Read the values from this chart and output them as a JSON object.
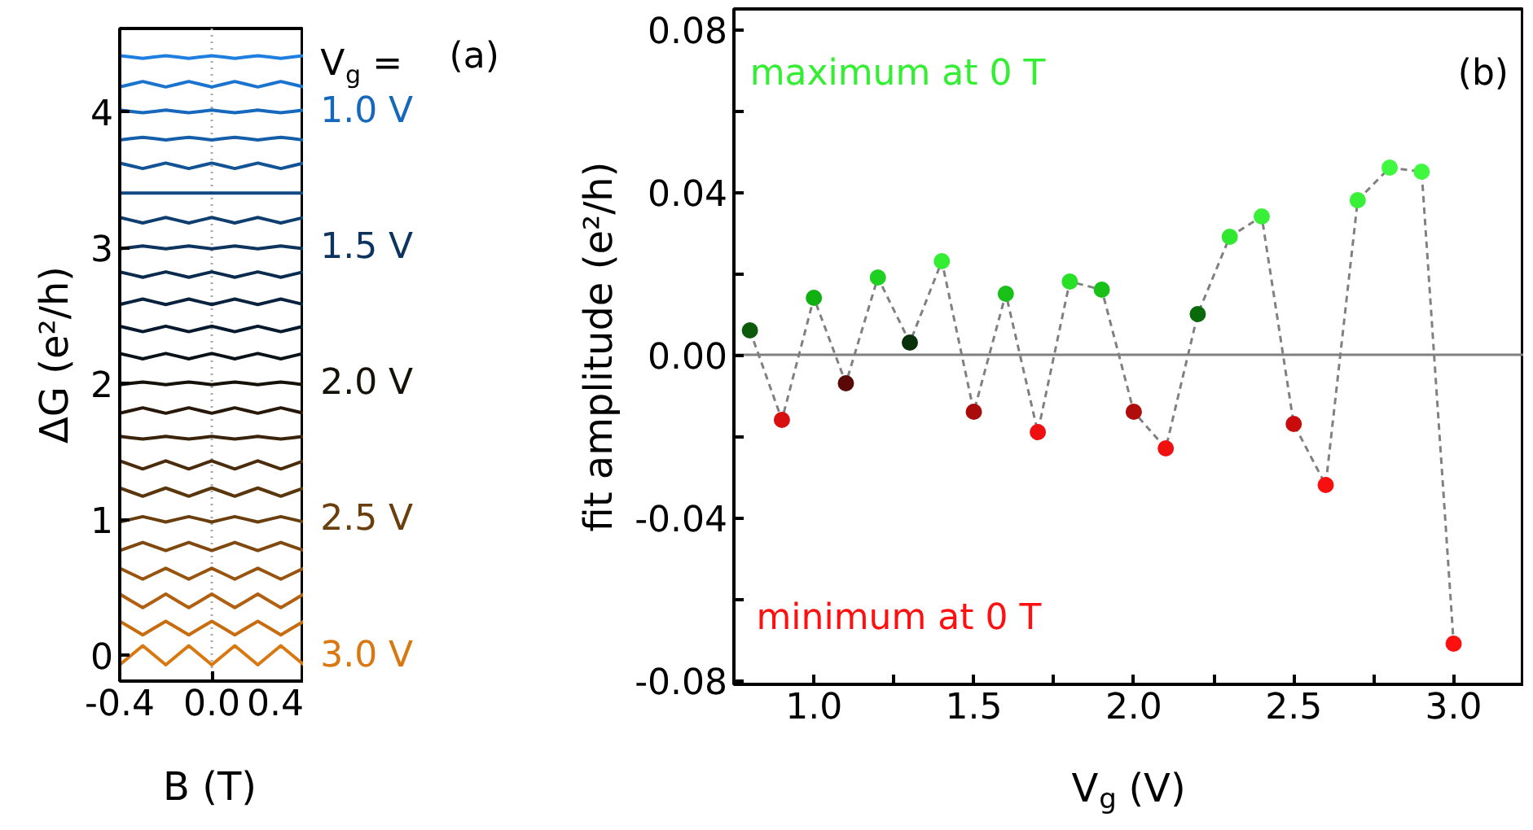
{
  "chart_data": [
    {
      "type": "line",
      "xlabel": "B (T)",
      "ylabel": "ΔG (e²/h)",
      "legend_title": "V$_{g}$ =",
      "annotations": [
        "(a)"
      ],
      "xlim": [
        -0.4,
        0.4
      ],
      "ylim": [
        -0.19,
        4.61
      ],
      "xticks": [
        -0.4,
        {
          "value": 0,
          "label": "0.0"
        },
        0.4
      ],
      "yticks": [
        0,
        1,
        2,
        3,
        4
      ],
      "ref_lines": [
        {
          "axis": "x",
          "value": 0,
          "color": "#aaaaaa",
          "line_style": "dotted"
        }
      ],
      "x": [
        -0.4,
        -0.35,
        -0.3,
        -0.25,
        -0.2,
        -0.15,
        -0.1,
        -0.05,
        0,
        0.05,
        0.1,
        0.15,
        0.2,
        0.25,
        0.3,
        0.35,
        0.4
      ],
      "series": [
        {
          "color": "#1e7fe0",
          "values": [
            4.41,
            4.4,
            4.39,
            4.4,
            4.41,
            4.4,
            4.39,
            4.4,
            4.41,
            4.4,
            4.39,
            4.4,
            4.41,
            4.4,
            4.39,
            4.4,
            4.41
          ]
        },
        {
          "color": "#1a74cf",
          "values": [
            4.18,
            4.2,
            4.22,
            4.2,
            4.18,
            4.2,
            4.22,
            4.2,
            4.18,
            4.2,
            4.22,
            4.2,
            4.18,
            4.2,
            4.22,
            4.2,
            4.18
          ]
        },
        {
          "name": "1.0 V",
          "color": "#1668bd",
          "values": [
            4.01,
            4.0,
            3.99,
            4.0,
            4.01,
            4.0,
            3.99,
            4.0,
            4.01,
            4.0,
            3.99,
            4.0,
            4.01,
            4.0,
            3.99,
            4.0,
            4.01
          ]
        },
        {
          "color": "#145ea9",
          "values": [
            3.79,
            3.8,
            3.81,
            3.8,
            3.79,
            3.8,
            3.81,
            3.8,
            3.79,
            3.8,
            3.81,
            3.8,
            3.79,
            3.8,
            3.81,
            3.8,
            3.79
          ]
        },
        {
          "color": "#125395",
          "values": [
            3.62,
            3.6,
            3.58,
            3.6,
            3.62,
            3.6,
            3.58,
            3.6,
            3.62,
            3.6,
            3.58,
            3.6,
            3.62,
            3.6,
            3.58,
            3.6,
            3.62
          ]
        },
        {
          "color": "#104882",
          "values": [
            3.4,
            3.4,
            3.4,
            3.4,
            3.4,
            3.4,
            3.4,
            3.4,
            3.4,
            3.4,
            3.4,
            3.4,
            3.4,
            3.4,
            3.4,
            3.4,
            3.4
          ]
        },
        {
          "color": "#0e3e70",
          "values": [
            3.22,
            3.2,
            3.18,
            3.2,
            3.22,
            3.2,
            3.18,
            3.2,
            3.22,
            3.2,
            3.18,
            3.2,
            3.22,
            3.2,
            3.18,
            3.2,
            3.22
          ]
        },
        {
          "name": "1.5 V",
          "color": "#0c345e",
          "values": [
            2.99,
            3.0,
            3.01,
            3.0,
            2.99,
            3.0,
            3.01,
            3.0,
            2.99,
            3.0,
            3.01,
            3.0,
            2.99,
            3.0,
            3.01,
            3.0,
            2.99
          ]
        },
        {
          "color": "#0a2b4d",
          "values": [
            2.82,
            2.8,
            2.78,
            2.8,
            2.82,
            2.8,
            2.78,
            2.8,
            2.82,
            2.8,
            2.78,
            2.8,
            2.82,
            2.8,
            2.78,
            2.8,
            2.82
          ]
        },
        {
          "color": "#08223d",
          "values": [
            2.58,
            2.6,
            2.62,
            2.6,
            2.58,
            2.6,
            2.62,
            2.6,
            2.58,
            2.6,
            2.62,
            2.6,
            2.58,
            2.6,
            2.62,
            2.6,
            2.58
          ]
        },
        {
          "color": "#07192d",
          "values": [
            2.42,
            2.4,
            2.38,
            2.4,
            2.42,
            2.4,
            2.38,
            2.4,
            2.42,
            2.4,
            2.38,
            2.4,
            2.42,
            2.4,
            2.38,
            2.4,
            2.42
          ]
        },
        {
          "color": "#0a1218",
          "values": [
            2.22,
            2.2,
            2.18,
            2.2,
            2.22,
            2.2,
            2.18,
            2.2,
            2.22,
            2.2,
            2.18,
            2.2,
            2.22,
            2.2,
            2.18,
            2.2,
            2.22
          ]
        },
        {
          "name": "2.0 V",
          "color": "#151008",
          "values": [
            1.99,
            2.0,
            2.01,
            2.0,
            1.99,
            2.0,
            2.01,
            2.0,
            1.99,
            2.0,
            2.01,
            2.0,
            1.99,
            2.0,
            2.01,
            2.0,
            1.99
          ]
        },
        {
          "color": "#28180a",
          "values": [
            1.78,
            1.8,
            1.82,
            1.8,
            1.78,
            1.8,
            1.82,
            1.8,
            1.78,
            1.8,
            1.82,
            1.8,
            1.78,
            1.8,
            1.82,
            1.8,
            1.78
          ]
        },
        {
          "color": "#3a220b",
          "values": [
            1.61,
            1.6,
            1.59,
            1.6,
            1.61,
            1.6,
            1.59,
            1.6,
            1.61,
            1.6,
            1.59,
            1.6,
            1.61,
            1.6,
            1.59,
            1.6,
            1.61
          ]
        },
        {
          "color": "#4a2c0c",
          "values": [
            1.43,
            1.4,
            1.37,
            1.4,
            1.43,
            1.4,
            1.37,
            1.4,
            1.43,
            1.4,
            1.37,
            1.4,
            1.43,
            1.4,
            1.37,
            1.4,
            1.43
          ]
        },
        {
          "color": "#5a360d",
          "values": [
            1.23,
            1.2,
            1.17,
            1.2,
            1.23,
            1.2,
            1.17,
            1.2,
            1.23,
            1.2,
            1.17,
            1.2,
            1.23,
            1.2,
            1.17,
            1.2,
            1.23
          ]
        },
        {
          "name": "2.5 V",
          "color": "#6a3e0d",
          "values": [
            0.98,
            1.0,
            1.02,
            1.0,
            0.98,
            1.0,
            1.02,
            1.0,
            0.98,
            1.0,
            1.02,
            1.0,
            0.98,
            1.0,
            1.02,
            1.0,
            0.98
          ]
        },
        {
          "color": "#80480e",
          "values": [
            0.77,
            0.8,
            0.83,
            0.8,
            0.77,
            0.8,
            0.83,
            0.8,
            0.77,
            0.8,
            0.83,
            0.8,
            0.77,
            0.8,
            0.83,
            0.8,
            0.77
          ]
        },
        {
          "color": "#98540f",
          "values": [
            0.64,
            0.6,
            0.56,
            0.6,
            0.64,
            0.6,
            0.56,
            0.6,
            0.64,
            0.6,
            0.56,
            0.6,
            0.64,
            0.6,
            0.56,
            0.6,
            0.64
          ]
        },
        {
          "color": "#b06010",
          "values": [
            0.45,
            0.4,
            0.35,
            0.4,
            0.45,
            0.4,
            0.35,
            0.4,
            0.45,
            0.4,
            0.35,
            0.4,
            0.45,
            0.4,
            0.35,
            0.4,
            0.45
          ]
        },
        {
          "color": "#c86c10",
          "values": [
            0.25,
            0.2,
            0.15,
            0.2,
            0.25,
            0.2,
            0.15,
            0.2,
            0.25,
            0.2,
            0.15,
            0.2,
            0.25,
            0.2,
            0.15,
            0.2,
            0.25
          ]
        },
        {
          "name": "3.0 V",
          "color": "#d97810",
          "values": [
            -0.07,
            0.0,
            0.07,
            0.0,
            -0.07,
            0.0,
            0.07,
            0.0,
            -0.07,
            0.0,
            0.07,
            0.0,
            -0.07,
            0.0,
            0.07,
            0.0,
            -0.07
          ]
        }
      ]
    },
    {
      "type": "line",
      "xlabel": "V$_{g}$ (V)",
      "ylabel": "fit amplitude (e²/h)",
      "annotations": [
        "maximum at 0 T",
        "minimum at 0 T",
        "(b)"
      ],
      "xlim": [
        0.75,
        3.22
      ],
      "ylim": [
        -0.081,
        0.085
      ],
      "xticks": [
        {
          "value": 0.75,
          "label": null
        },
        {
          "value": 1,
          "label": "1.0"
        },
        {
          "value": 1.25,
          "label": null
        },
        {
          "value": 1.5,
          "label": "1.5"
        },
        {
          "value": 1.75,
          "label": null
        },
        {
          "value": 2,
          "label": "2.0"
        },
        {
          "value": 2.25,
          "label": null
        },
        {
          "value": 2.5,
          "label": "2.5"
        },
        {
          "value": 2.75,
          "label": null
        },
        {
          "value": 3,
          "label": "3.0"
        }
      ],
      "yticks": [
        -0.08,
        {
          "value": -0.06,
          "label": null
        },
        -0.04,
        {
          "value": -0.02,
          "label": null
        },
        {
          "value": 0,
          "label": "0.00"
        },
        {
          "value": 0.02,
          "label": null
        },
        0.04,
        {
          "value": 0.06,
          "label": null
        },
        0.08
      ],
      "ref_lines": [
        {
          "axis": "y",
          "value": 0,
          "color": "#808080",
          "line_style": "solid"
        }
      ],
      "marker": "circle",
      "line_style": "dashed",
      "x": [
        0.8,
        0.9,
        1.0,
        1.1,
        1.2,
        1.3,
        1.4,
        1.5,
        1.6,
        1.7,
        1.8,
        1.9,
        2.0,
        2.1,
        2.2,
        2.3,
        2.4,
        2.5,
        2.6,
        2.7,
        2.8,
        2.9,
        3.0
      ],
      "series": [
        {
          "color": "#808080",
          "values": [
            0.006,
            -0.016,
            0.014,
            -0.007,
            0.019,
            0.003,
            0.023,
            -0.014,
            0.015,
            -0.019,
            0.018,
            0.016,
            -0.014,
            -0.023,
            0.01,
            0.029,
            0.034,
            -0.017,
            -0.032,
            0.038,
            0.046,
            0.045,
            -0.071
          ],
          "colors": [
            "#0c5a0c",
            "#d81010",
            "#10b010",
            "#5a0808",
            "#20d020",
            "#0a320a",
            "#33ee33",
            "#a80c0c",
            "#18c018",
            "#ee1010",
            "#28e028",
            "#18c018",
            "#b00c0c",
            "#f01010",
            "#0a6a0a",
            "#30e830",
            "#38f038",
            "#c80c0c",
            "#f81010",
            "#38f038",
            "#40f840",
            "#40f840",
            "#ff1010"
          ]
        }
      ]
    }
  ]
}
